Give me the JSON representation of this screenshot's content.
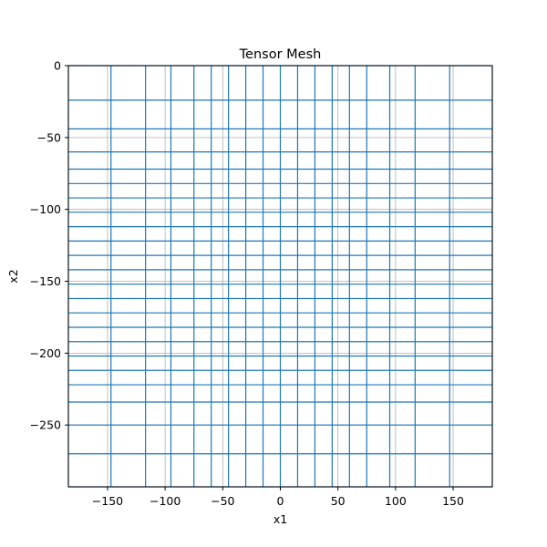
{
  "chart_data": {
    "type": "mesh",
    "title": "Tensor Mesh",
    "xlabel": "x1",
    "ylabel": "x2",
    "xlim": [
      -184,
      184
    ],
    "ylim": [
      -293,
      0
    ],
    "grid": true,
    "xticks": [
      -150,
      -100,
      -50,
      0,
      50,
      100,
      150
    ],
    "xtick_labels": [
      "−150",
      "−100",
      "−50",
      "0",
      "50",
      "100",
      "150"
    ],
    "yticks": [
      0,
      -50,
      -100,
      -150,
      -200,
      -250
    ],
    "ytick_labels": [
      "0",
      "−50",
      "−100",
      "−150",
      "−200",
      "−250"
    ],
    "mesh_x_nodes": [
      -184,
      -147,
      -117,
      -95,
      -75,
      -60,
      -45,
      -30,
      -15,
      0,
      15,
      30,
      45,
      60,
      75,
      95,
      117,
      147,
      184
    ],
    "mesh_y_nodes": [
      0,
      -24,
      -44,
      -60,
      -72,
      -82,
      -92,
      -102,
      -112,
      -122,
      -132,
      -142,
      -152,
      -162,
      -172,
      -182,
      -192,
      -202,
      -212,
      -222,
      -234,
      -250,
      -270,
      -293
    ],
    "colors": {
      "mesh_line": "#1f77b4",
      "grid_line": "#b0b0b0",
      "axis": "#000000"
    }
  }
}
